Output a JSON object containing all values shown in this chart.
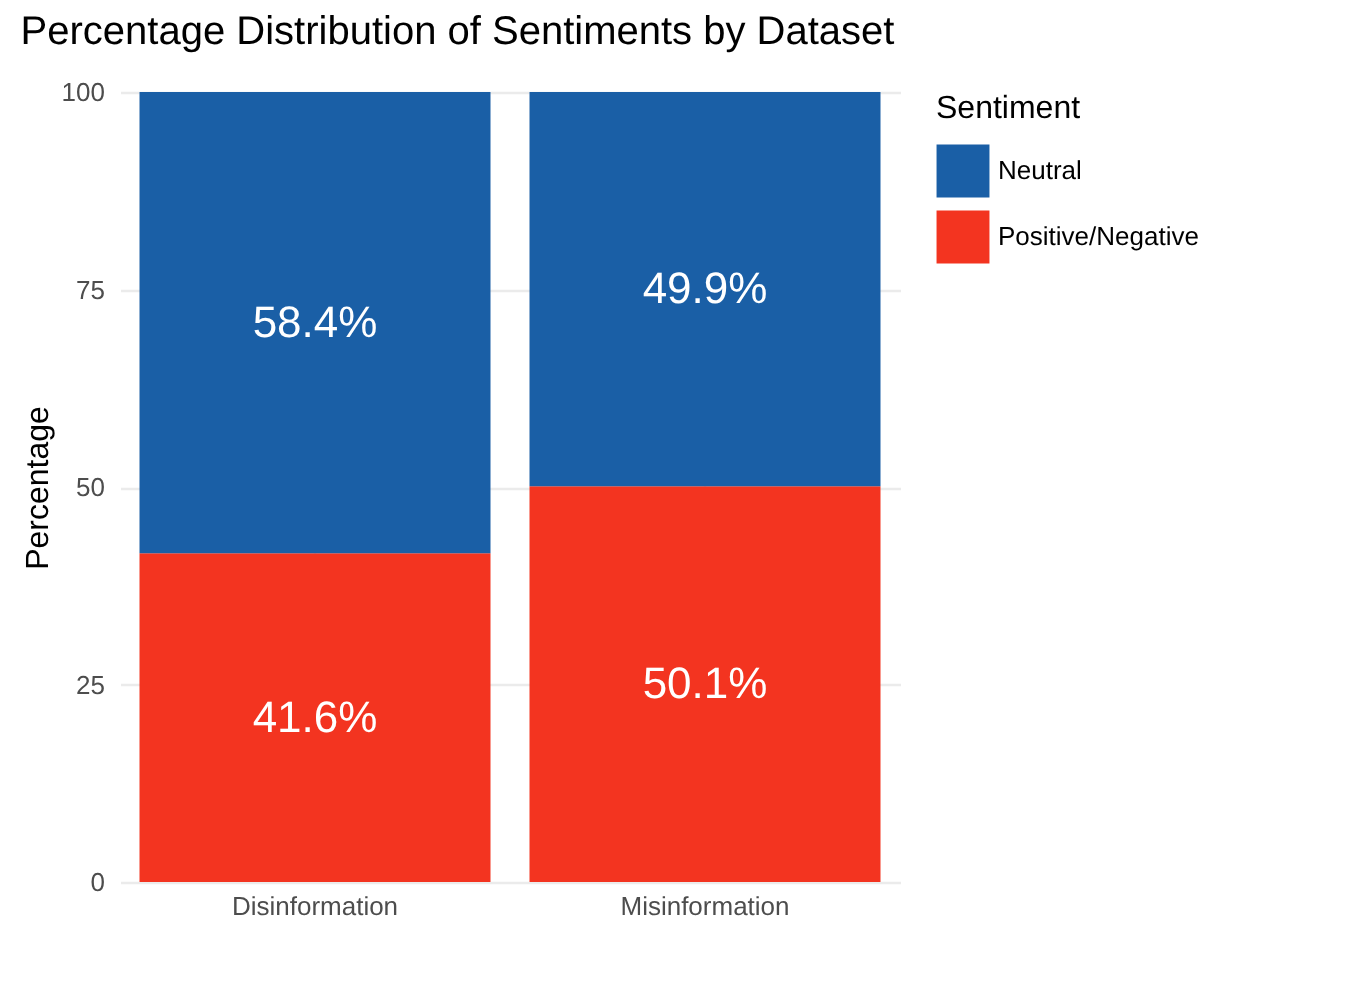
{
  "chart_data": {
    "type": "bar",
    "title": "Percentage Distribution of Sentiments by Dataset",
    "ylabel": "Percentage",
    "legend_title": "Sentiment",
    "categories": [
      "Disinformation",
      "Misinformation"
    ],
    "stacked": true,
    "series": [
      {
        "name": "Positive/Negative",
        "color": "#f33420",
        "values": [
          41.6,
          50.1
        ],
        "value_labels": [
          "41.6%",
          "50.1%"
        ]
      },
      {
        "name": "Neutral",
        "color": "#1a5fa6",
        "values": [
          58.4,
          49.9
        ],
        "value_labels": [
          "58.4%",
          "49.9%"
        ]
      }
    ],
    "ylim": [
      0,
      100
    ],
    "yticks": [
      0,
      25,
      50,
      75,
      100
    ],
    "grid": true,
    "legend": "right"
  }
}
